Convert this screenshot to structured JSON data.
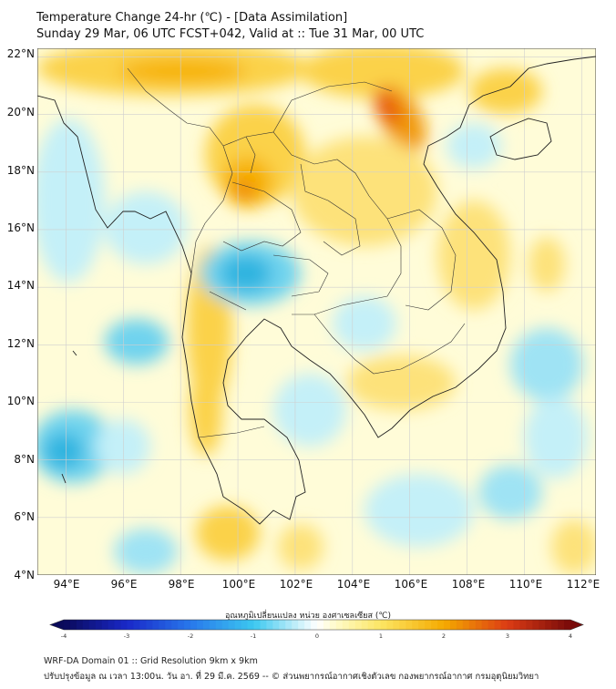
{
  "header": {
    "title_line1": "Temperature Change 24-hr (℃) - [Data Assimilation]",
    "title_line2": "Sunday 29 Mar, 06 UTC FCST+042, Valid at :: Tue 31 Mar, 00 UTC"
  },
  "map": {
    "lat_labels": [
      "22°N",
      "20°N",
      "18°N",
      "16°N",
      "14°N",
      "12°N",
      "10°N",
      "8°N",
      "6°N",
      "4°N"
    ],
    "lon_labels": [
      "94°E",
      "96°E",
      "98°E",
      "100°E",
      "102°E",
      "104°E",
      "106°E",
      "108°E",
      "110°E",
      "112°E"
    ],
    "extent": {
      "lon_min": 93,
      "lon_max": 112.5,
      "lat_min": 4,
      "lat_max": 22.3
    }
  },
  "colorbar": {
    "label": "อุณหภูมิเปลี่ยนแปลง หน่วย องศาเซลเซียส (℃)",
    "min": -4,
    "max": 4,
    "ticks": [
      "-4",
      "-3",
      "-2",
      "-1",
      "0",
      "1",
      "2",
      "3",
      "4"
    ]
  },
  "footer": {
    "line1": "WRF-DA Domain 01 :: Grid Resolution 9km x 9km",
    "line2": "ปรับปรุงข้อมูล ณ เวลา 13:00น. วัน อา. ที่ 29 มี.ค. 2569 -- © ส่วนพยากรณ์อากาศเชิงตัวเลข กองพยากรณ์อากาศ กรมอุตุนิยมวิทยา"
  },
  "colors": {
    "land_border": "#222222",
    "grid": "#cfcfcf",
    "neutral": "#fffcd8",
    "warm": "#f7b300",
    "hot": "#e85a10",
    "cool": "#6fd3ee",
    "cold": "#2fb4e0"
  }
}
